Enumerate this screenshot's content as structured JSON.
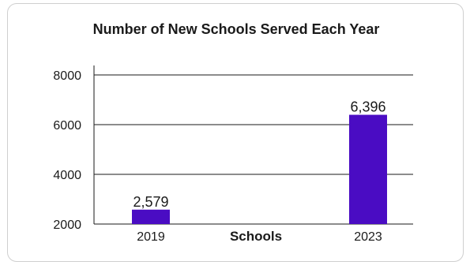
{
  "chart_data": {
    "type": "bar",
    "title": "Number of New Schools Served Each Year",
    "xlabel": "Schools",
    "ylabel": "",
    "categories": [
      "2019",
      "2023"
    ],
    "values": [
      2579,
      6396
    ],
    "value_labels": [
      "2,579",
      "6,396"
    ],
    "ylim": [
      2000,
      8000
    ],
    "yticks": [
      2000,
      4000,
      6000,
      8000
    ],
    "ytick_labels": [
      "2000",
      "4000",
      "6000",
      "8000"
    ],
    "grid": true,
    "bar_color": "#4a0cc3",
    "legend": "none"
  }
}
